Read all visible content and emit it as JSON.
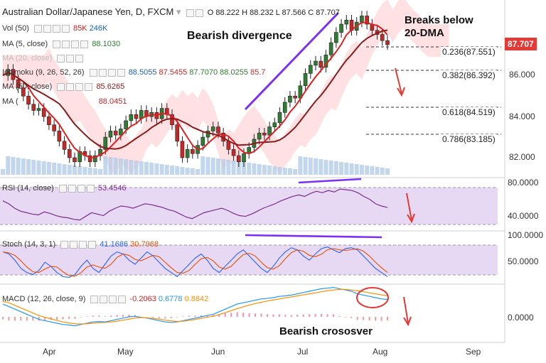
{
  "header": {
    "symbol": "Australian Dollar/Japanese Yen, D, FXCM",
    "ohlc": "O 88.222  H 88.232  L 87.566  C 87.707",
    "vol": "Vol (50)",
    "vol_vals": [
      "85K",
      "246K"
    ],
    "ma5": "MA (5, close)",
    "ma5_val": "88.1030",
    "ma20": "MA (20, close)",
    "ichimoku": "Ichimoku (9, 26, 52, 26)",
    "ichimoku_vals": [
      "88.5055",
      "87.5455",
      "87.7070",
      "88.0255",
      "85.7"
    ],
    "ma50": "MA (50, close)",
    "ma50_val": "85.6265",
    "ma_extra": "MA (",
    "ma_extra_val": "88.0451"
  },
  "annotations": {
    "divergence": "Bearish divergence",
    "breaks1": "Breaks below",
    "breaks2": "20-DMA",
    "crossover": "Bearish crososver"
  },
  "current_price": "87.707",
  "fib_levels": [
    {
      "label": "0.236(87.551)",
      "value": 87.551
    },
    {
      "label": "0.382(86.392)",
      "value": 86.392
    },
    {
      "label": "0.618(84.519)",
      "value": 84.519
    },
    {
      "label": "0.786(83.185)",
      "value": 83.185
    }
  ],
  "rsi": {
    "label": "RSI (14, close)",
    "value": "53.4546",
    "ticks": [
      "80.0000",
      "40.0000"
    ]
  },
  "stoch": {
    "label": "Stoch (14, 3, 1)",
    "vals": [
      "41.1686",
      "30.7968"
    ],
    "ticks": [
      "100.0000",
      "50.0000"
    ]
  },
  "macd": {
    "label": "MACD (12, 26, close, 9)",
    "vals": [
      "-0.2063",
      "0.6778",
      "0.8842"
    ],
    "ticks": [
      "0.0000"
    ]
  },
  "colors": {
    "bull": "#2e7d32",
    "bear": "#c62828",
    "divergence": "#7b2ff7",
    "ma20": "#e02020",
    "ma50": "#8b1a1a",
    "kumo_bull": "#c8e6c9",
    "kumo_bear": "#ffcdd2",
    "rsi_fill": "#e7d8f3",
    "arrow": "#e53935"
  },
  "chart_data": {
    "type": "candlestick",
    "price_ticks": [
      "86.000",
      "84.000",
      "82.000"
    ],
    "ylim": [
      81.3,
      89.6
    ],
    "x_labels": [
      "Apr",
      "May",
      "Jun",
      "Jul",
      "Aug",
      "Sep"
    ],
    "close_path": [
      86.2,
      86.5,
      86.0,
      85.6,
      85.2,
      84.8,
      84.5,
      84.6,
      84.2,
      83.8,
      83.5,
      83.0,
      82.6,
      82.2,
      82.0,
      82.5,
      82.3,
      82.0,
      82.3,
      82.6,
      83.2,
      83.5,
      83.3,
      83.6,
      84.0,
      84.3,
      84.1,
      84.5,
      84.2,
      84.4,
      84.1,
      84.6,
      84.3,
      83.8,
      83.0,
      82.2,
      82.6,
      82.4,
      82.8,
      83.2,
      83.5,
      83.7,
      83.4,
      83.0,
      82.6,
      82.3,
      82.0,
      82.4,
      82.7,
      83.1,
      83.4,
      83.3,
      83.7,
      83.9,
      84.4,
      84.9,
      85.2,
      85.1,
      85.7,
      86.3,
      86.7,
      86.9,
      86.6,
      87.2,
      87.8,
      88.3,
      88.7,
      88.9,
      88.4,
      88.8,
      89.1,
      88.7,
      88.4,
      88.2,
      87.9,
      87.7
    ],
    "rsi": [
      62,
      58,
      52,
      48,
      46,
      44,
      43,
      47,
      45,
      42,
      40,
      39,
      37,
      36,
      41,
      46,
      44,
      42,
      48,
      52,
      55,
      54,
      52,
      55,
      58,
      57,
      55,
      53,
      50,
      48,
      44,
      40,
      38,
      42,
      46,
      48,
      50,
      52,
      49,
      45,
      42,
      41,
      44,
      48,
      52,
      55,
      58,
      62,
      65,
      68,
      70,
      68,
      72,
      75,
      73,
      76,
      74,
      78,
      77,
      76,
      73,
      68,
      64,
      58,
      55,
      53
    ],
    "stoch_k": [
      80,
      75,
      60,
      40,
      30,
      25,
      35,
      55,
      45,
      30,
      20,
      18,
      25,
      45,
      60,
      40,
      30,
      50,
      70,
      80,
      75,
      60,
      50,
      65,
      80,
      70,
      55,
      40,
      30,
      20,
      35,
      50,
      65,
      75,
      60,
      40,
      30,
      45,
      60,
      75,
      85,
      70,
      55,
      40,
      30,
      45,
      65,
      80,
      90,
      85,
      70,
      60,
      75,
      88,
      92,
      85,
      78,
      88,
      90,
      85,
      70,
      55,
      40,
      30,
      20
    ],
    "macd": [
      0.5,
      0.4,
      0.3,
      0.2,
      0.1,
      0.0,
      -0.1,
      -0.15,
      -0.2,
      -0.25,
      -0.3,
      -0.32,
      -0.35,
      -0.3,
      -0.25,
      -0.2,
      -0.18,
      -0.2,
      -0.15,
      -0.1,
      -0.05,
      0.0,
      0.02,
      -0.02,
      -0.05,
      -0.1,
      -0.15,
      -0.2,
      -0.22,
      -0.2,
      -0.15,
      -0.1,
      -0.05,
      0.0,
      0.05,
      0.1,
      0.2,
      0.3,
      0.4,
      0.5,
      0.55,
      0.6,
      0.65,
      0.7,
      0.72,
      0.75,
      0.8,
      0.82,
      0.85,
      0.9,
      0.95,
      1.0,
      1.05,
      1.1,
      1.12,
      1.15,
      1.1,
      1.05,
      1.0,
      0.9,
      0.85,
      0.8,
      0.75,
      0.7,
      0.68
    ],
    "macd_signal": [
      0.6,
      0.55,
      0.45,
      0.35,
      0.25,
      0.15,
      0.05,
      -0.02,
      -0.08,
      -0.14,
      -0.2,
      -0.24,
      -0.27,
      -0.28,
      -0.27,
      -0.25,
      -0.23,
      -0.22,
      -0.2,
      -0.17,
      -0.13,
      -0.09,
      -0.05,
      -0.03,
      -0.04,
      -0.06,
      -0.09,
      -0.13,
      -0.16,
      -0.18,
      -0.17,
      -0.14,
      -0.1,
      -0.06,
      -0.02,
      0.03,
      0.09,
      0.16,
      0.24,
      0.32,
      0.39,
      0.46,
      0.52,
      0.57,
      0.62,
      0.66,
      0.7,
      0.74,
      0.78,
      0.82,
      0.86,
      0.9,
      0.94,
      0.98,
      1.02,
      1.05,
      1.07,
      1.07,
      1.05,
      1.02,
      0.98,
      0.94,
      0.9,
      0.86,
      0.82
    ]
  }
}
